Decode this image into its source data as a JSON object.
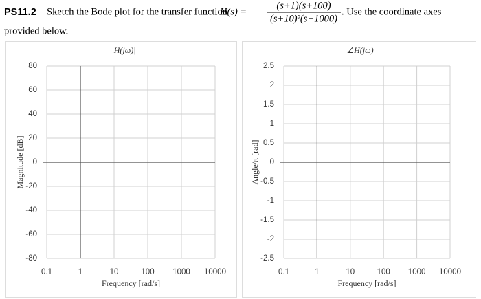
{
  "problem": {
    "label": "PS11.2",
    "text_before": "Sketch the Bode plot for the transfer function",
    "lhs": "H(s) =",
    "numerator": "(s+1)(s+100)",
    "denominator": "(s+10)²(s+1000)",
    "text_after": ". Use the coordinate axes",
    "text_line2": "provided below."
  },
  "charts": [
    {
      "type": "axes",
      "title": "|H(jω)|",
      "x_label": "Frequency [rad/s]",
      "y_label": "Magnitude [dB]",
      "x_scale": "log",
      "xlim": [
        0.1,
        10000
      ],
      "xticks": [
        0.1,
        1,
        10,
        100,
        1000,
        10000
      ],
      "ylim": [
        -80,
        80
      ],
      "yticks": [
        80,
        60,
        40,
        20,
        0,
        -20,
        -40,
        -60,
        -80
      ],
      "grid": true
    },
    {
      "type": "axes",
      "title": "∠H(jω)",
      "x_label": "Frequency [rad/s]",
      "y_label": "Angle/π [rad]",
      "x_scale": "log",
      "xlim": [
        0.1,
        10000
      ],
      "xticks": [
        0.1,
        1,
        10,
        100,
        1000,
        10000
      ],
      "ylim": [
        -2.5,
        2.5
      ],
      "yticks": [
        2.5,
        2,
        1.5,
        1,
        0.5,
        0,
        -0.5,
        -1,
        -1.5,
        -2,
        -2.5
      ],
      "grid": true
    }
  ]
}
